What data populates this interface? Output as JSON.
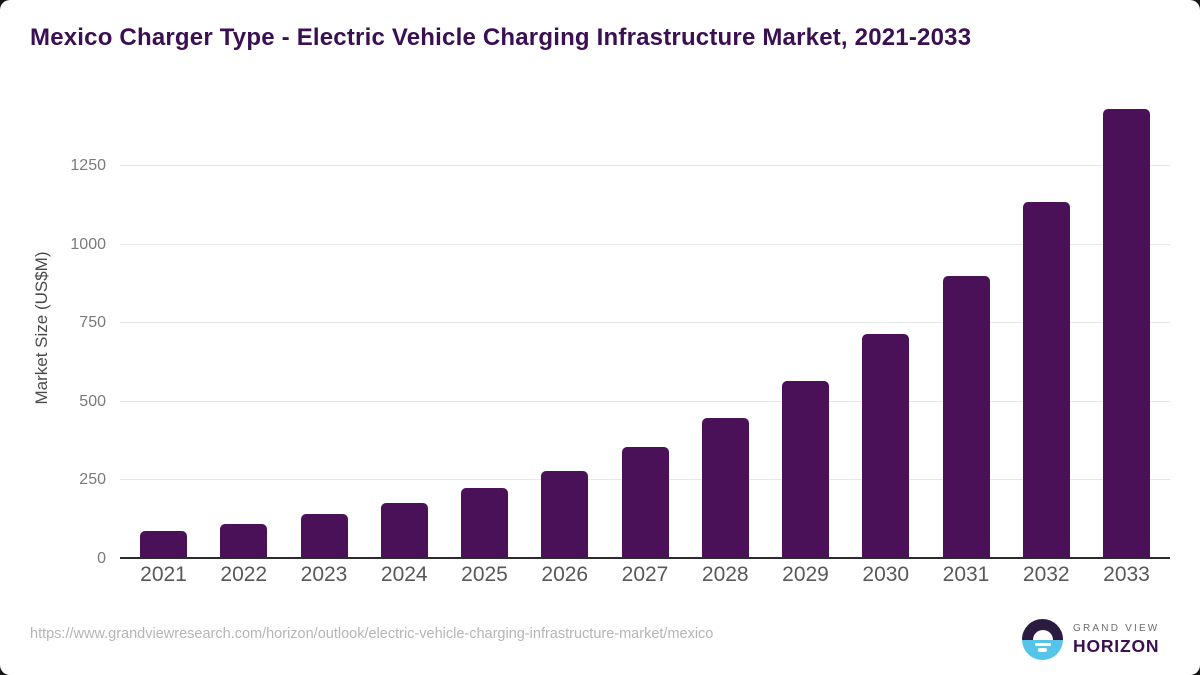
{
  "title": "Mexico Charger Type - Electric Vehicle Charging Infrastructure Market, 2021-2033",
  "chart_data": {
    "type": "bar",
    "title": "Mexico Charger Type - Electric Vehicle Charging Infrastructure Market, 2021-2033",
    "categories": [
      "2021",
      "2022",
      "2023",
      "2024",
      "2025",
      "2026",
      "2027",
      "2028",
      "2029",
      "2030",
      "2031",
      "2032",
      "2033"
    ],
    "values": [
      82,
      105,
      136,
      173,
      219,
      275,
      350,
      442,
      560,
      710,
      895,
      1130,
      1425
    ],
    "xlabel": "",
    "ylabel": "Market Size (US$M)",
    "ylim": [
      0,
      1460
    ],
    "yticks": [
      0,
      250,
      500,
      750,
      1000,
      1250
    ],
    "grid": true,
    "legend_position": "none",
    "bar_color": "#4a1158"
  },
  "colors": {
    "title": "#3b1053",
    "bar": "#4a1158",
    "gridline": "#e7e7e7",
    "axis_line": "#2b2b2b",
    "y_tick_label": "#7a7a7a",
    "x_tick_label": "#58585a",
    "url_text": "#b5b5b5",
    "logo_dark": "#2b1b40",
    "logo_blue": "#56c3e8"
  },
  "footer": {
    "source_url": "https://www.grandviewresearch.com/horizon/outlook/electric-vehicle-charging-infrastructure-market/mexico",
    "logo": {
      "top_text": "GRAND VIEW",
      "bottom_text": "HORIZON"
    }
  }
}
